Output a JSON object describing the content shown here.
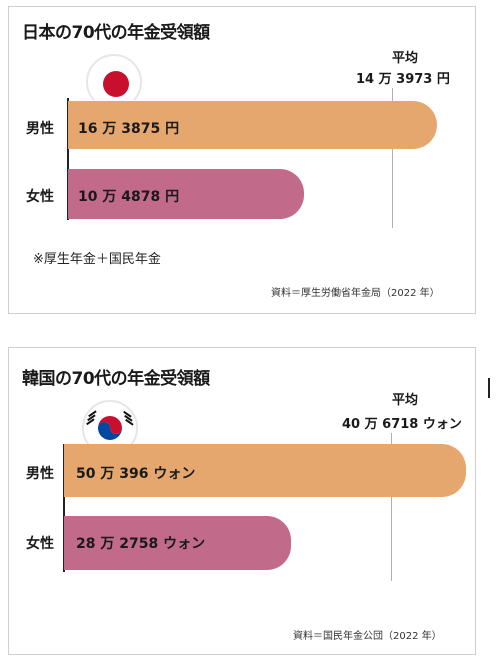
{
  "chart_data": [
    {
      "type": "bar",
      "orientation": "horizontal",
      "title": "日本の70代の年金受領額",
      "categories": [
        "男性",
        "女性"
      ],
      "values": [
        163875,
        104878
      ],
      "value_labels": [
        "16 万 3875 円",
        "10 万 4878 円"
      ],
      "reference_line": {
        "label": "平均",
        "value": 143973,
        "value_label": "14 万 3973 円"
      },
      "note": "※厚生年金＋国民年金",
      "source": "資料＝厚生労働省年金局（2022 年）",
      "xlim": [
        0,
        175000
      ],
      "colors": {
        "男性": "#e5a76e",
        "女性": "#c26a8a"
      },
      "flag": "japan-flag"
    },
    {
      "type": "bar",
      "orientation": "horizontal",
      "title": "韓国の70代の年金受領額",
      "categories": [
        "男性",
        "女性"
      ],
      "values": [
        500396,
        282758
      ],
      "value_labels": [
        "50 万 396 ウォン",
        "28 万 2758 ウォン"
      ],
      "reference_line": {
        "label": "平均",
        "value": 406718,
        "value_label": "40 万 6718 ウォン"
      },
      "source": "資料＝国民年金公団（2022 年）",
      "xlim": [
        0,
        510000
      ],
      "colors": {
        "男性": "#e5a76e",
        "女性": "#c26a8a"
      },
      "flag": "korea-flag"
    }
  ]
}
